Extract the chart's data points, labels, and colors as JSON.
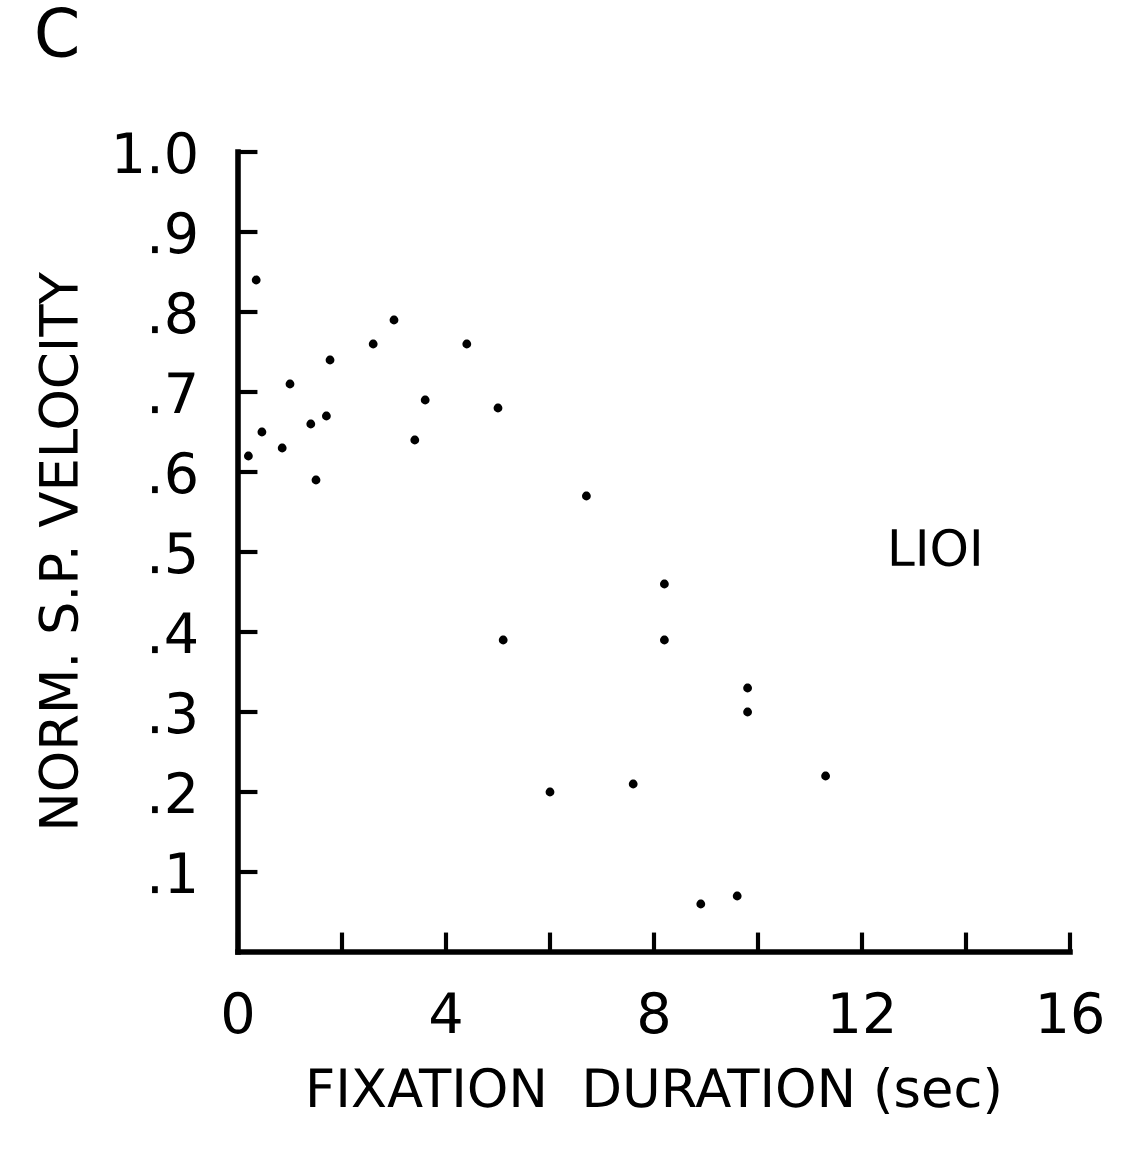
{
  "chart_data": {
    "type": "scatter",
    "title": "C",
    "xlabel": "FIXATION  DURATION (sec)",
    "ylabel": "NORM. S.P. VELOCITY",
    "x": [
      0.35,
      0.2,
      0.46,
      0.85,
      1.0,
      1.4,
      1.5,
      1.7,
      1.77,
      2.6,
      3.0,
      3.4,
      3.6,
      4.4,
      5.0,
      5.1,
      6.0,
      6.7,
      7.6,
      8.2,
      8.2,
      8.9,
      9.6,
      9.8,
      9.8,
      11.3
    ],
    "values": [
      0.84,
      0.62,
      0.65,
      0.63,
      0.71,
      0.66,
      0.59,
      0.67,
      0.74,
      0.76,
      0.79,
      0.64,
      0.69,
      0.76,
      0.68,
      0.39,
      0.2,
      0.57,
      0.21,
      0.46,
      0.39,
      0.06,
      0.07,
      0.33,
      0.3,
      0.22
    ],
    "color": "#000000",
    "marker": "circle",
    "xlim": [
      0,
      16
    ],
    "xticks": [
      0,
      {
        "value": 2,
        "label": null
      },
      4,
      {
        "value": 6,
        "label": null
      },
      8,
      {
        "value": 10,
        "label": null
      },
      12,
      {
        "value": 14,
        "label": null
      },
      16
    ],
    "ylim": [
      0,
      1.0
    ],
    "yticks": [
      {
        "value": 0.1,
        "label": ".1"
      },
      {
        "value": 0.2,
        "label": ".2"
      },
      {
        "value": 0.3,
        "label": ".3"
      },
      {
        "value": 0.4,
        "label": ".4"
      },
      {
        "value": 0.5,
        "label": ".5"
      },
      {
        "value": 0.6,
        "label": ".6"
      },
      {
        "value": 0.7,
        "label": ".7"
      },
      {
        "value": 0.8,
        "label": ".8"
      },
      {
        "value": 0.9,
        "label": ".9"
      },
      {
        "value": 1.0,
        "label": "1.0"
      }
    ],
    "grid": false,
    "legend": false,
    "annotations": [
      "LIOI"
    ]
  }
}
